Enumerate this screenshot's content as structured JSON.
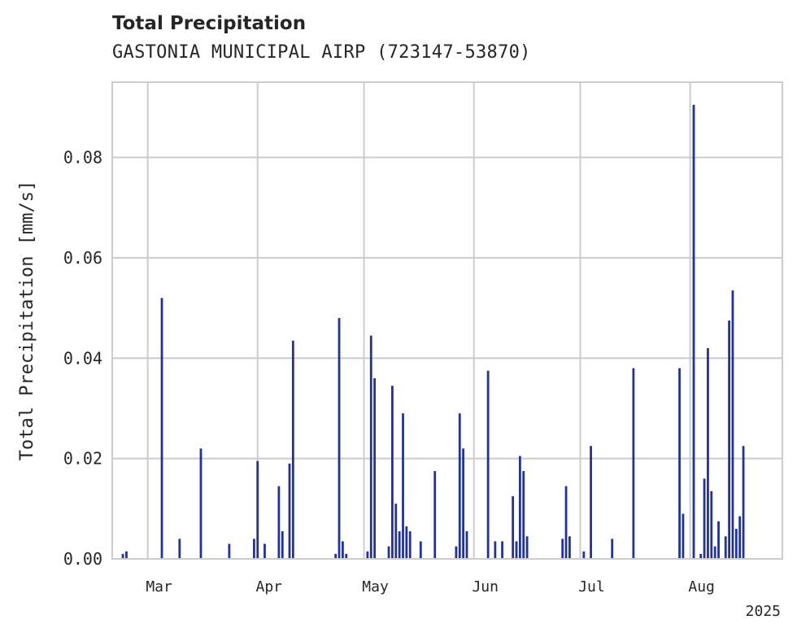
{
  "chart_data": {
    "type": "bar",
    "title": "Total Precipitation",
    "subtitle": "GASTONIA MUNICIPAL AIRP (723147-53870)",
    "xlabel": "",
    "ylabel": "Total Precipitation [mm/s]",
    "x_range": [
      "2025-02-19",
      "2025-08-27"
    ],
    "ylim": [
      0,
      0.095
    ],
    "y_ticks": [
      0.0,
      0.02,
      0.04,
      0.06,
      0.08
    ],
    "y_tick_labels": [
      "0.00",
      "0.02",
      "0.04",
      "0.06",
      "0.08"
    ],
    "x_ticks": [
      {
        "date": "2025-03-01",
        "label": "Mar"
      },
      {
        "date": "2025-04-01",
        "label": "Apr"
      },
      {
        "date": "2025-05-01",
        "label": "May"
      },
      {
        "date": "2025-06-01",
        "label": "Jun"
      },
      {
        "date": "2025-07-01",
        "label": "Jul"
      },
      {
        "date": "2025-08-01",
        "label": "Aug"
      }
    ],
    "x_offset_label": "2025",
    "grid": true,
    "color": "#223393",
    "series": [
      {
        "x": [
          "2025-02-22",
          "2025-02-23",
          "2025-03-05",
          "2025-03-10",
          "2025-03-16",
          "2025-03-24",
          "2025-03-31",
          "2025-04-01",
          "2025-04-03",
          "2025-04-07",
          "2025-04-08",
          "2025-04-10",
          "2025-04-11",
          "2025-04-23",
          "2025-04-24",
          "2025-04-25",
          "2025-04-26",
          "2025-05-02",
          "2025-05-03",
          "2025-05-04",
          "2025-05-08",
          "2025-05-09",
          "2025-05-10",
          "2025-05-11",
          "2025-05-12",
          "2025-05-13",
          "2025-05-14",
          "2025-05-17",
          "2025-05-21",
          "2025-05-27",
          "2025-05-28",
          "2025-05-29",
          "2025-05-30",
          "2025-06-05",
          "2025-06-07",
          "2025-06-09",
          "2025-06-12",
          "2025-06-13",
          "2025-06-14",
          "2025-06-15",
          "2025-06-16",
          "2025-06-26",
          "2025-06-27",
          "2025-06-28",
          "2025-07-02",
          "2025-07-04",
          "2025-07-10",
          "2025-07-16",
          "2025-07-29",
          "2025-07-30",
          "2025-08-02",
          "2025-08-04",
          "2025-08-05",
          "2025-08-06",
          "2025-08-07",
          "2025-08-08",
          "2025-08-09",
          "2025-08-11",
          "2025-08-12",
          "2025-08-13",
          "2025-08-14",
          "2025-08-15",
          "2025-08-16"
        ],
        "values": [
          0.001,
          0.0015,
          0.052,
          0.004,
          0.022,
          0.003,
          0.004,
          0.0195,
          0.003,
          0.0145,
          0.0055,
          0.019,
          0.0435,
          0.001,
          0.048,
          0.0035,
          0.001,
          0.0015,
          0.0445,
          0.036,
          0.0025,
          0.0345,
          0.011,
          0.0055,
          0.029,
          0.0065,
          0.0055,
          0.0035,
          0.0175,
          0.0025,
          0.029,
          0.022,
          0.0055,
          0.0375,
          0.0035,
          0.0035,
          0.0125,
          0.0035,
          0.0205,
          0.0175,
          0.0045,
          0.004,
          0.0145,
          0.0045,
          0.0015,
          0.0225,
          0.004,
          0.038,
          0.038,
          0.009,
          0.0905,
          0.001,
          0.016,
          0.042,
          0.0135,
          0.0025,
          0.0075,
          0.0045,
          0.0475,
          0.0535,
          0.006,
          0.0085,
          0.0225
        ]
      }
    ]
  }
}
